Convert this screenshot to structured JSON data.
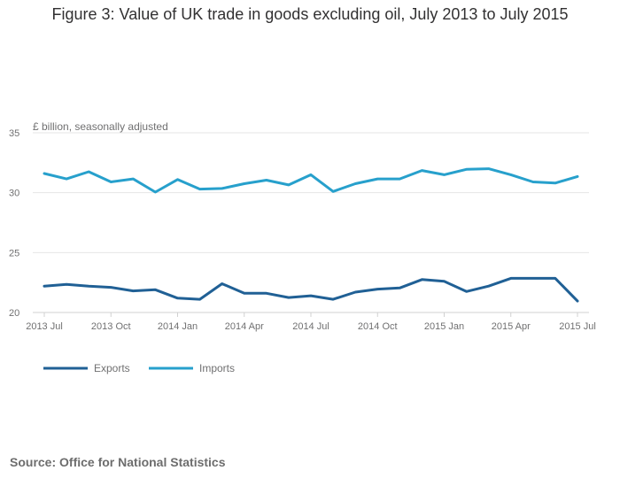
{
  "chart_data": {
    "type": "line",
    "title": "Figure 3: Value of UK trade in goods excluding oil, July 2013 to July 2015",
    "ylabel": "£ billion, seasonally adjusted",
    "xlabel": "",
    "ylim": [
      20,
      35
    ],
    "yticks": [
      20,
      25,
      30,
      35
    ],
    "xtick_labels": [
      "2013 Jul",
      "2013 Oct",
      "2014 Jan",
      "2014 Apr",
      "2014 Jul",
      "2014 Oct",
      "2015 Jan",
      "2015 Apr",
      "2015 Jul"
    ],
    "xtick_indices": [
      0,
      3,
      6,
      9,
      12,
      15,
      18,
      21,
      24
    ],
    "x": [
      "2013 Jul",
      "2013 Aug",
      "2013 Sep",
      "2013 Oct",
      "2013 Nov",
      "2013 Dec",
      "2014 Jan",
      "2014 Feb",
      "2014 Mar",
      "2014 Apr",
      "2014 May",
      "2014 Jun",
      "2014 Jul",
      "2014 Aug",
      "2014 Sep",
      "2014 Oct",
      "2014 Nov",
      "2014 Dec",
      "2015 Jan",
      "2015 Feb",
      "2015 Mar",
      "2015 Apr",
      "2015 May",
      "2015 Jun",
      "2015 Jul"
    ],
    "series": [
      {
        "name": "Exports",
        "color": "#206095",
        "values": [
          22.2,
          22.35,
          22.2,
          22.1,
          21.8,
          21.9,
          21.2,
          21.1,
          22.4,
          21.6,
          21.6,
          21.25,
          21.4,
          21.1,
          21.7,
          21.95,
          22.05,
          22.75,
          22.6,
          21.75,
          22.2,
          22.85,
          22.85,
          22.85,
          20.95
        ]
      },
      {
        "name": "Imports",
        "color": "#27a0cc",
        "values": [
          31.6,
          31.15,
          31.75,
          30.9,
          31.15,
          30.05,
          31.1,
          30.3,
          30.35,
          30.75,
          31.05,
          30.65,
          31.5,
          30.1,
          30.75,
          31.15,
          31.15,
          31.85,
          31.5,
          31.95,
          32.0,
          31.5,
          30.9,
          30.8,
          31.35
        ]
      }
    ],
    "legend_position": "bottom-left"
  },
  "source": "Source: Office for National Statistics"
}
